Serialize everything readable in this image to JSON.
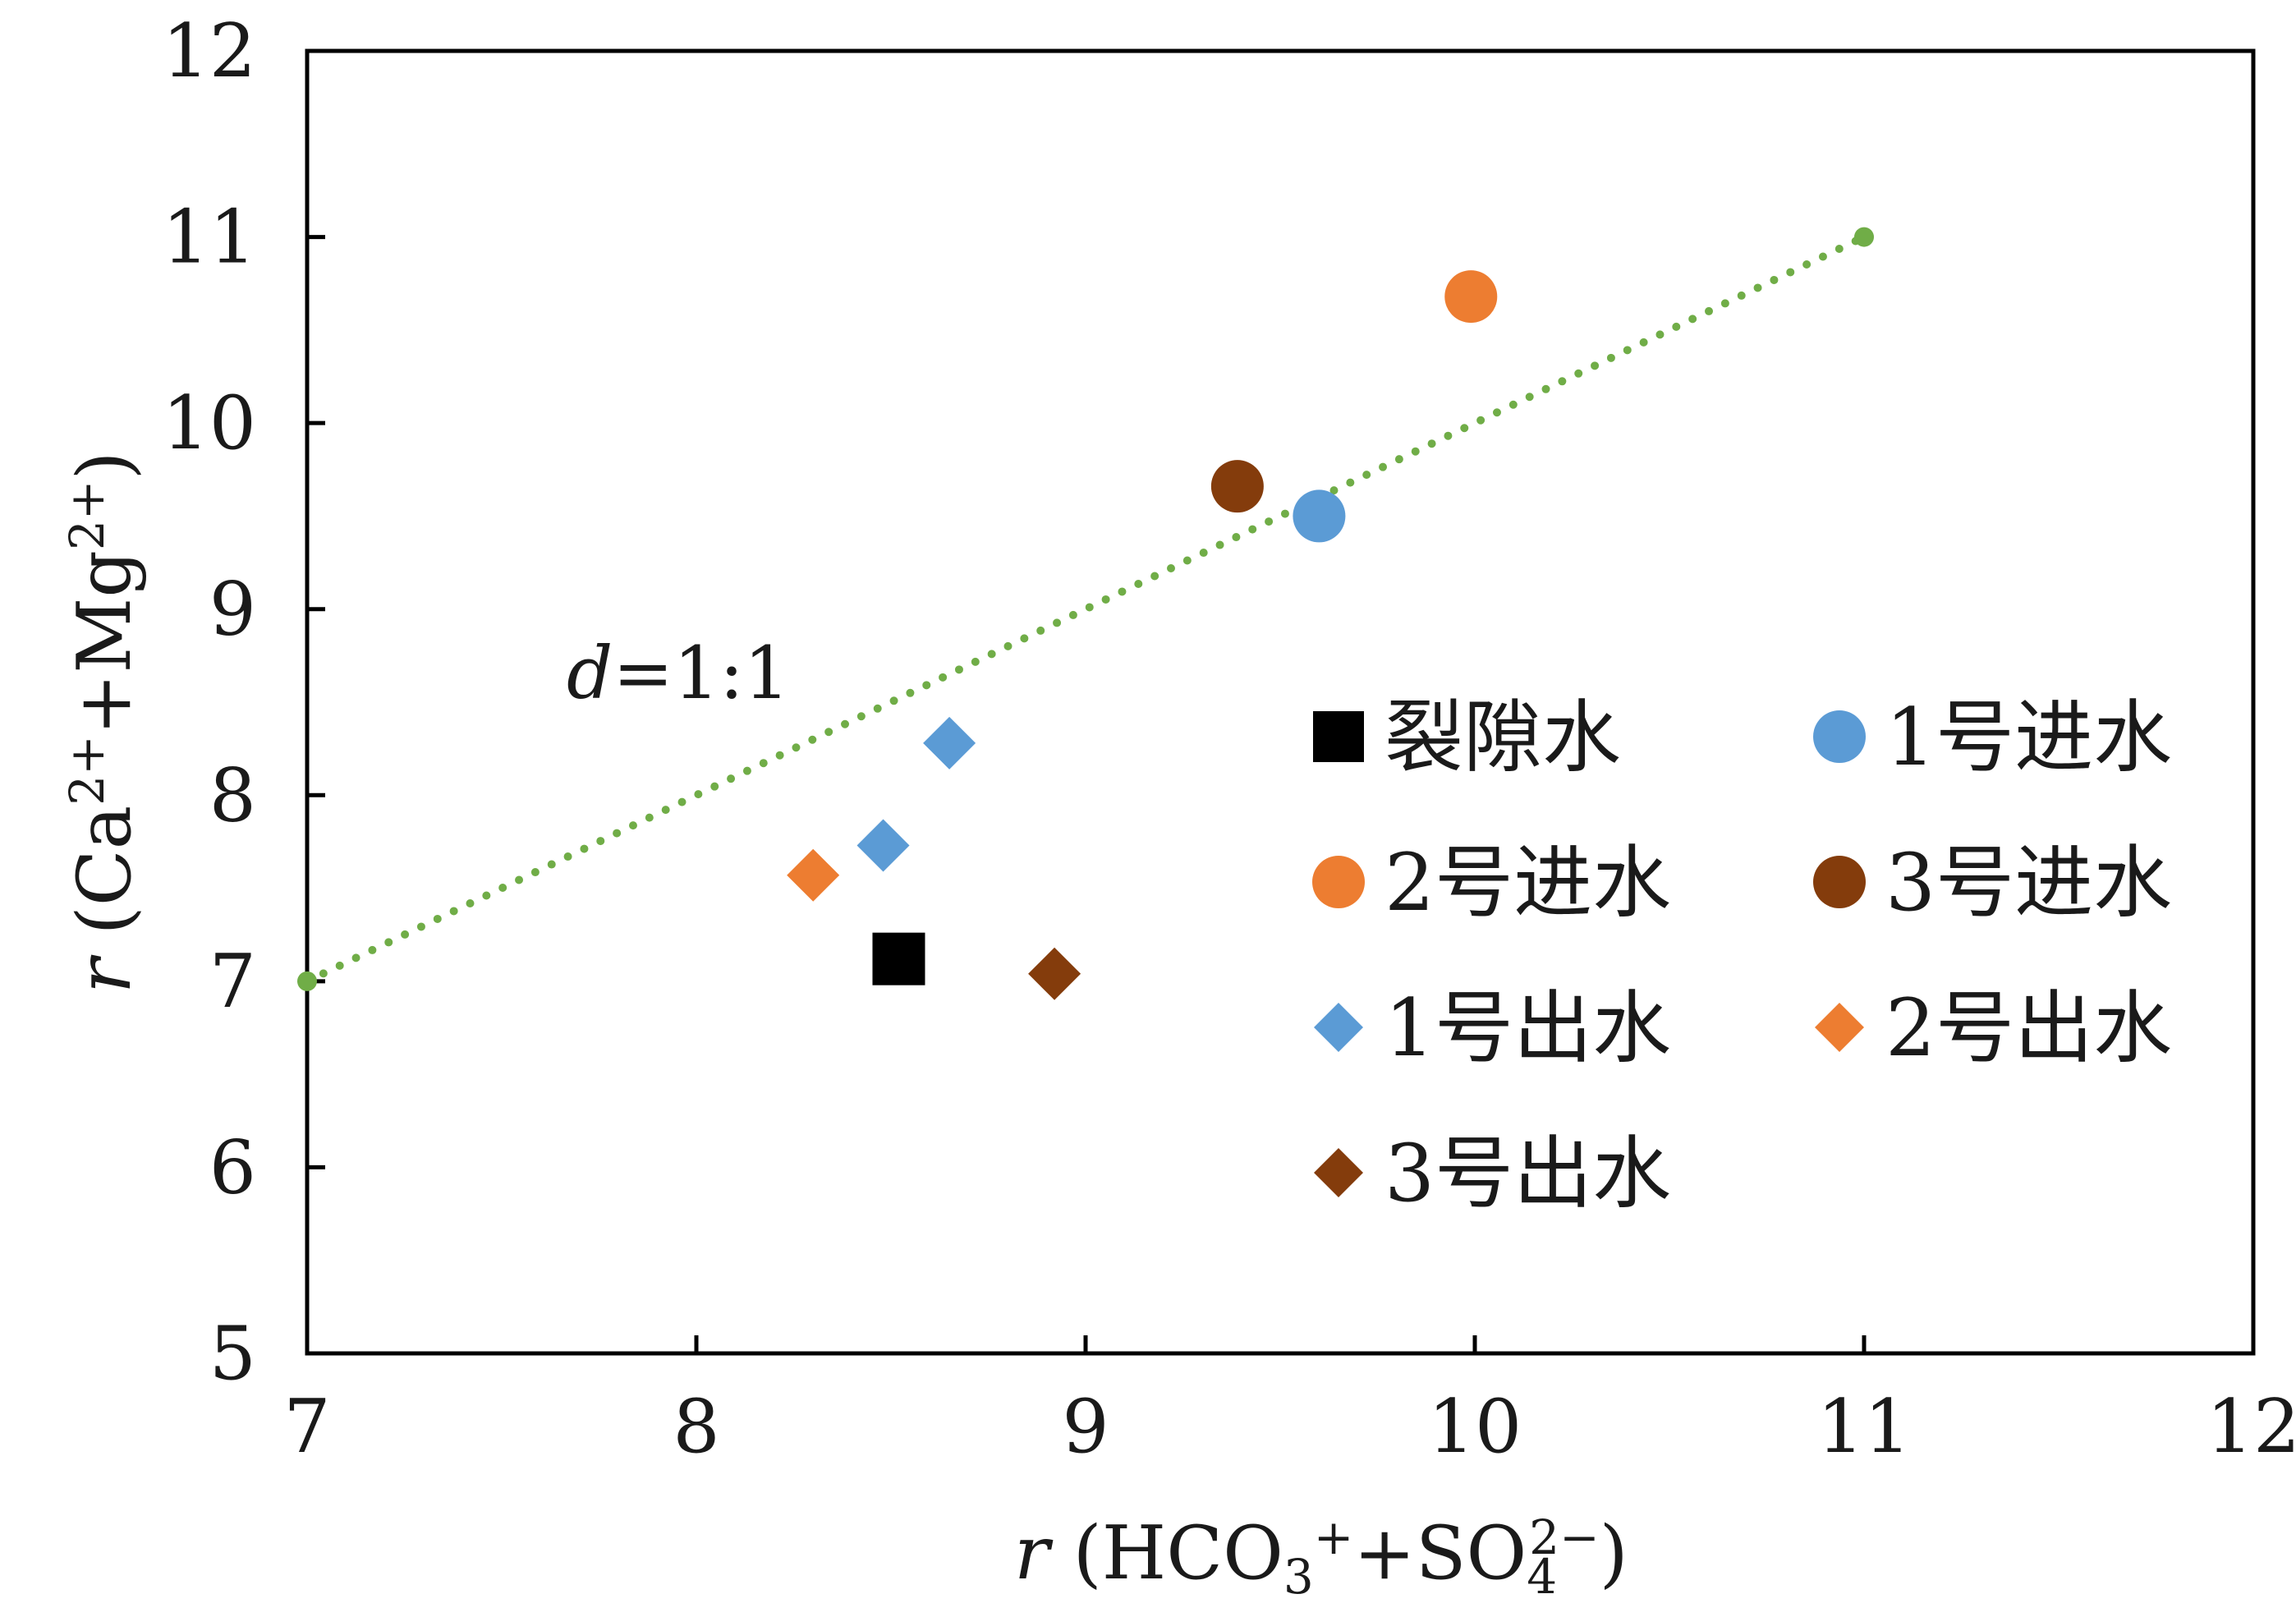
{
  "chart_data": {
    "type": "scatter",
    "title": "",
    "xlabel": {
      "var": "r",
      "label": " (HCO",
      "sub1": "3",
      "sup1": "+",
      "mid": "+SO",
      "sub2": "4",
      "sup2": "2−",
      "close": ")"
    },
    "ylabel": {
      "var": "r",
      "label": " (Ca",
      "sup1": "2+",
      "mid": "+Mg",
      "sup2": "2+",
      "close": ")"
    },
    "xlim": [
      7,
      12
    ],
    "ylim": [
      5,
      12
    ],
    "xticks": [
      "7",
      "8",
      "9",
      "10",
      "11",
      "12"
    ],
    "yticks": [
      "5",
      "6",
      "7",
      "8",
      "9",
      "10",
      "11",
      "12"
    ],
    "grid": false,
    "legend_position": "right",
    "reference_line": {
      "name": "d=1:1",
      "label_italic": "d",
      "label_rest": "=1:1",
      "color": "#70ad47",
      "points": [
        [
          7,
          7
        ],
        [
          11,
          11
        ]
      ]
    },
    "series": [
      {
        "name": "裂隙水",
        "marker": "square",
        "color": "#000000",
        "points": [
          [
            8.52,
            7.12
          ]
        ]
      },
      {
        "name": "1号进水",
        "marker": "circle",
        "color": "#5b9bd5",
        "points": [
          [
            9.6,
            9.5
          ]
        ]
      },
      {
        "name": "2号进水",
        "marker": "circle",
        "color": "#ed7d31",
        "points": [
          [
            9.99,
            10.68
          ]
        ]
      },
      {
        "name": "3号进水",
        "marker": "circle",
        "color": "#843c0c",
        "points": [
          [
            9.39,
            9.66
          ]
        ]
      },
      {
        "name": "1号出水",
        "marker": "diamond",
        "color": "#5b9bd5",
        "points": [
          [
            8.65,
            8.28
          ],
          [
            8.48,
            7.73
          ]
        ]
      },
      {
        "name": "2号出水",
        "marker": "diamond",
        "color": "#ed7d31",
        "points": [
          [
            8.3,
            7.57
          ]
        ]
      },
      {
        "name": "3号出水",
        "marker": "diamond",
        "color": "#843c0c",
        "points": [
          [
            8.92,
            7.04
          ]
        ]
      }
    ]
  }
}
